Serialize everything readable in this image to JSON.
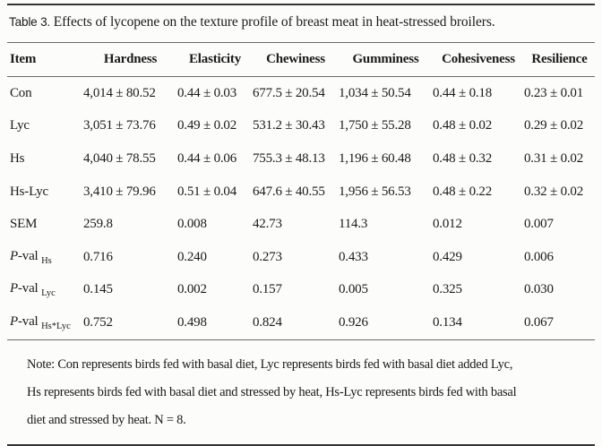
{
  "caption": {
    "label": "Table 3.",
    "text": "Effects of lycopene on the texture profile of breast meat in heat-stressed broilers."
  },
  "table": {
    "headers": [
      "Item",
      "Hardness",
      "Elasticity",
      "Chewiness",
      "Gumminess",
      "Cohesiveness",
      "Resilience"
    ],
    "rows": [
      {
        "label": "Con",
        "values": [
          "4,014 ± 80.52",
          "0.44 ± 0.03",
          "677.5 ± 20.54",
          "1,034 ± 50.54",
          "0.44 ± 0.18",
          "0.23 ± 0.01"
        ]
      },
      {
        "label": "Lyc",
        "values": [
          "3,051 ± 73.76",
          "0.49 ± 0.02",
          "531.2 ± 30.43",
          "1,750 ± 55.28",
          "0.48 ± 0.02",
          "0.29 ± 0.02"
        ]
      },
      {
        "label": "Hs",
        "values": [
          "4,040 ± 78.55",
          "0.44 ± 0.06",
          "755.3 ± 48.13",
          "1,196 ± 60.48",
          "0.48 ± 0.32",
          "0.31 ± 0.02"
        ]
      },
      {
        "label": "Hs-Lyc",
        "values": [
          "3,410 ± 79.96",
          "0.51 ± 0.04",
          "647.6 ± 40.55",
          "1,956 ± 56.53",
          "0.48 ± 0.22",
          "0.32 ± 0.02"
        ]
      },
      {
        "label": "SEM",
        "values": [
          "259.8",
          "0.008",
          "42.73",
          "114.3",
          "0.012",
          "0.007"
        ]
      },
      {
        "label_italic": "P",
        "label": "-val",
        "label_sub": "Hs",
        "values": [
          "0.716",
          "0.240",
          "0.273",
          "0.433",
          "0.429",
          "0.006"
        ]
      },
      {
        "label_italic": "P",
        "label": "-val",
        "label_sub": "Lyc",
        "values": [
          "0.145",
          "0.002",
          "0.157",
          "0.005",
          "0.325",
          "0.030"
        ]
      },
      {
        "label_italic": "P",
        "label": "-val",
        "label_sub": "Hs*Lyc",
        "values": [
          "0.752",
          "0.498",
          "0.824",
          "0.926",
          "0.134",
          "0.067"
        ]
      }
    ]
  },
  "note": {
    "lines": [
      "Note: Con represents birds fed with basal diet, Lyc represents birds fed with basal diet added Lyc,",
      "Hs represents birds fed with basal diet and stressed by heat, Hs-Lyc represents birds fed with basal",
      "diet and stressed by heat. N = 8."
    ]
  }
}
